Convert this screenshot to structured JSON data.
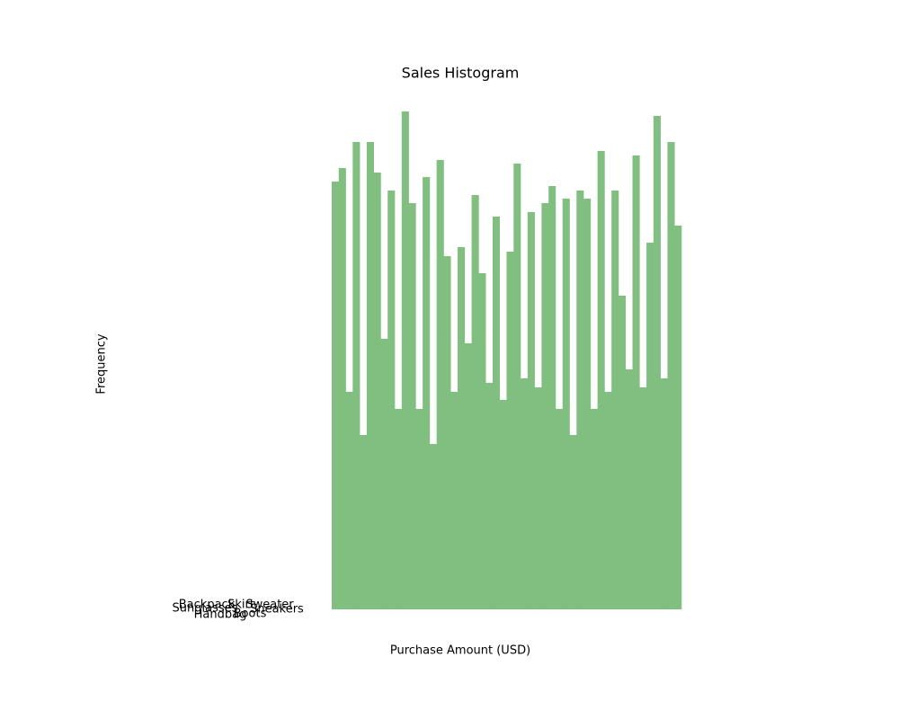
{
  "chart_data": {
    "type": "histogram",
    "title": "Sales Histogram",
    "xlabel": "Purchase Amount (USD)",
    "ylabel": "Frequency",
    "color": "#80bf80",
    "bins": [
      0,
      1,
      2,
      3,
      4,
      5,
      6,
      7,
      8,
      9,
      10,
      11,
      12,
      13,
      14,
      15,
      16,
      17,
      18,
      19,
      20,
      21,
      22,
      23,
      24,
      25,
      26,
      27,
      28,
      29,
      30,
      31,
      32,
      33,
      34,
      35,
      36,
      37,
      38,
      39,
      40,
      41,
      42,
      43,
      44,
      45,
      46,
      47,
      48,
      49,
      50
    ],
    "values": [
      47.6,
      49.1,
      24.2,
      52.0,
      19.4,
      52.0,
      48.6,
      30.1,
      46.6,
      22.3,
      55.4,
      45.2,
      22.3,
      48.1,
      18.4,
      50.0,
      39.3,
      24.2,
      40.3,
      29.6,
      46.1,
      37.4,
      25.2,
      43.7,
      23.3,
      39.8,
      49.6,
      25.7,
      44.2,
      24.7,
      45.2,
      47.1,
      22.3,
      45.7,
      19.4,
      46.6,
      45.7,
      22.3,
      51.0,
      24.2,
      46.6,
      34.9,
      26.7,
      50.5,
      24.7,
      40.8,
      54.9,
      25.7,
      52.0,
      42.7
    ],
    "xlim": [
      0,
      50
    ],
    "ylim": [
      0,
      58.2
    ],
    "category_labels": [
      "Backpack",
      "Skirt",
      "Sweater",
      "Sunglasses",
      "Sneakers",
      "Handbag",
      "Boots"
    ]
  }
}
